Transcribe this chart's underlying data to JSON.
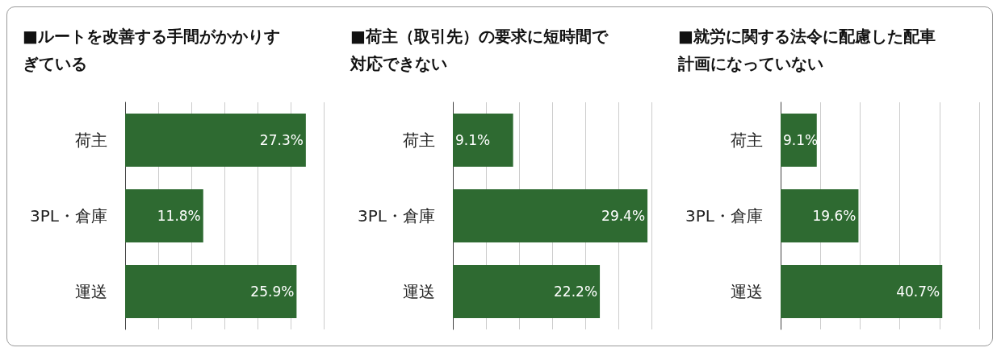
{
  "chart_data": [
    {
      "type": "bar",
      "orientation": "horizontal",
      "title": "■ルートを改善する手間がかかりすぎている",
      "categories": [
        "荷主",
        "3PL・倉庫",
        "運送"
      ],
      "values": [
        27.3,
        11.8,
        25.9
      ],
      "value_labels": [
        "27.3%",
        "11.8%",
        "25.9%"
      ],
      "color": "#2e6a31",
      "grid": "x",
      "tick_labels": "y"
    },
    {
      "type": "bar",
      "orientation": "horizontal",
      "title": "■荷主（取引先）の要求に短時間で対応できない",
      "categories": [
        "荷主",
        "3PL・倉庫",
        "運送"
      ],
      "values": [
        9.1,
        29.4,
        22.2
      ],
      "value_labels": [
        "9.1%",
        "29.4%",
        "22.2%"
      ],
      "color": "#2e6a31",
      "grid": "x",
      "tick_labels": "y"
    },
    {
      "type": "bar",
      "orientation": "horizontal",
      "title": "■就労に関する法令に配慮した配車計画になっていない",
      "categories": [
        "荷主",
        "3PL・倉庫",
        "運送"
      ],
      "values": [
        9.1,
        19.6,
        40.7
      ],
      "value_labels": [
        "9.1%",
        "19.6%",
        "40.7%"
      ],
      "color": "#2e6a31",
      "grid": "x",
      "tick_labels": "y"
    }
  ]
}
